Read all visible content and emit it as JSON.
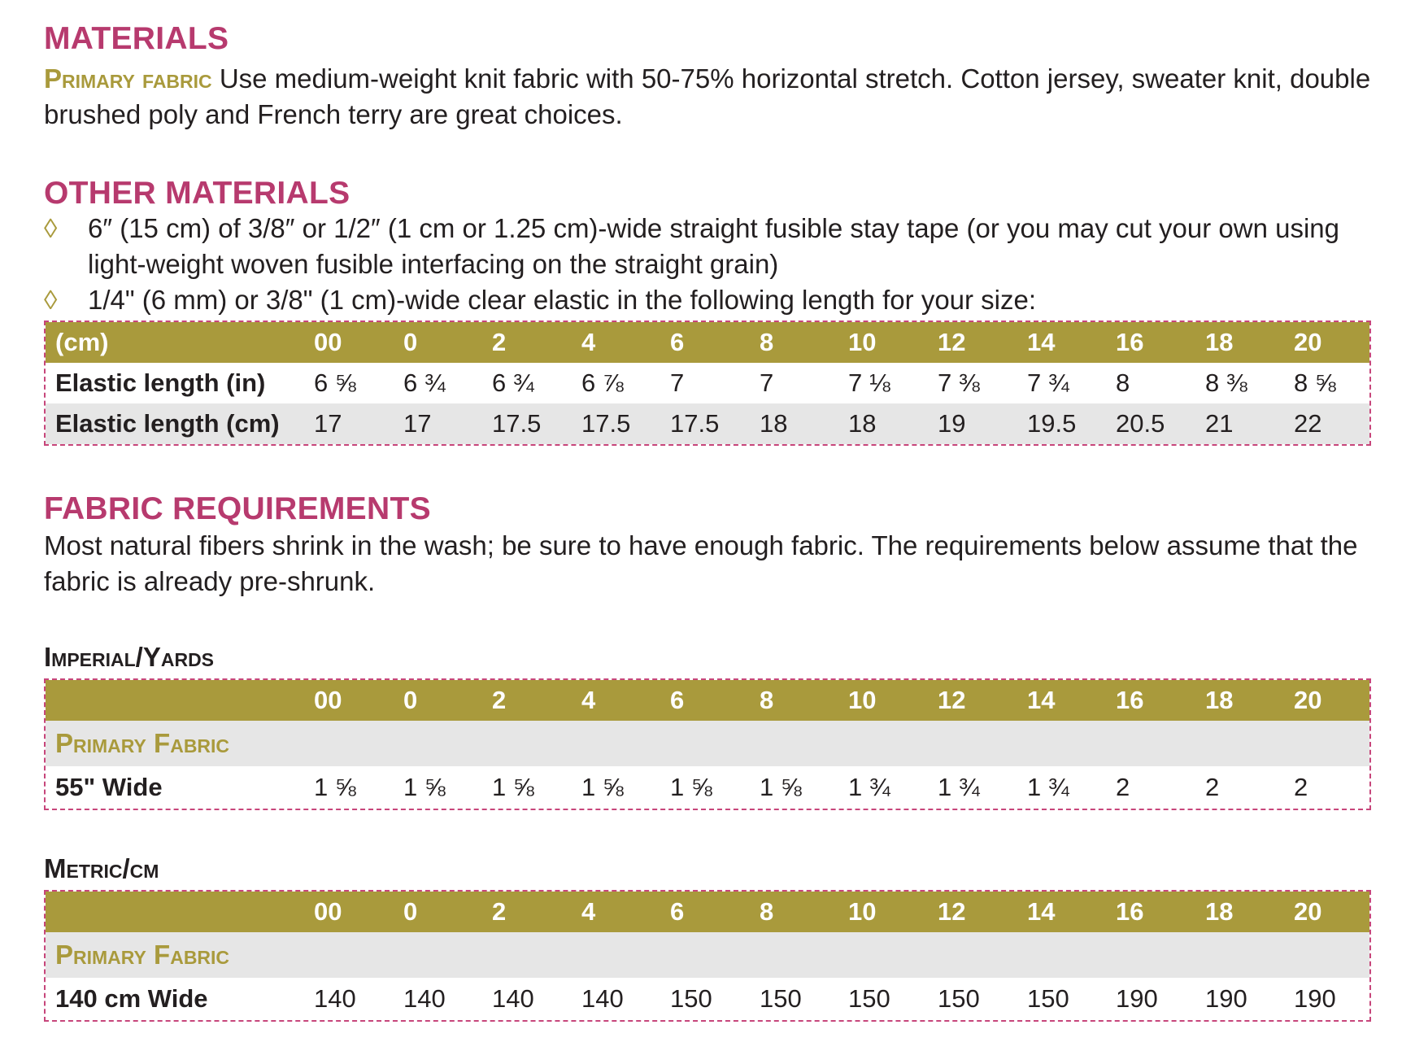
{
  "materials": {
    "title": "MATERIALS",
    "primary_label": "Primary fabric",
    "primary_text": " Use medium-weight knit fabric with 50-75% horizontal stretch. Cotton jersey, sweater knit, double brushed poly and French terry are great choices."
  },
  "other_materials": {
    "title": "OTHER MATERIALS",
    "bullet_symbol": "◊",
    "items": [
      "6″ (15 cm) of 3/8″ or 1/2″ (1 cm or 1.25 cm)-wide straight fusible stay tape (or you may cut your own using light-weight woven fusible interfacing on the straight grain)",
      "1/4\" (6 mm) or 3/8\" (1 cm)-wide clear elastic in the following length for your size:"
    ]
  },
  "sizes": [
    "00",
    "0",
    "2",
    "4",
    "6",
    "8",
    "10",
    "12",
    "14",
    "16",
    "18",
    "20"
  ],
  "elastic_table": {
    "header_label": "(cm)",
    "rows": [
      {
        "label": "Elastic length (in)",
        "values": [
          "6 ⅝",
          "6 ¾",
          "6 ¾",
          "6 ⅞",
          "7",
          "7",
          "7 ⅛",
          "7 ⅜",
          "7 ¾",
          "8",
          "8 ⅜",
          "8 ⅝"
        ]
      },
      {
        "label": "Elastic length (cm)",
        "values": [
          "17",
          "17",
          "17.5",
          "17.5",
          "17.5",
          "18",
          "18",
          "19",
          "19.5",
          "20.5",
          "21",
          "22"
        ]
      }
    ]
  },
  "fabric_requirements": {
    "title": "FABRIC REQUIREMENTS",
    "text": "Most natural fibers shrink in the wash; be sure to have enough fabric. The requirements below assume that the fabric is already pre-shrunk."
  },
  "imperial": {
    "title": "Imperial/Yards",
    "category": "Primary Fabric",
    "row_label": "55\" Wide",
    "values": [
      "1 ⅝",
      "1 ⅝",
      "1 ⅝",
      "1 ⅝",
      "1 ⅝",
      "1 ⅝",
      "1 ¾",
      "1 ¾",
      "1 ¾",
      "2",
      "2",
      "2"
    ]
  },
  "metric": {
    "title": "Metric/cm",
    "category": "Primary Fabric",
    "row_label": "140 cm Wide",
    "values": [
      "140",
      "140",
      "140",
      "140",
      "150",
      "150",
      "150",
      "150",
      "150",
      "190",
      "190",
      "190"
    ]
  },
  "colors": {
    "heading": "#b73a6e",
    "olive": "#a99a3c",
    "row_shade": "#e6e6e6",
    "dash": "#c7467b"
  }
}
